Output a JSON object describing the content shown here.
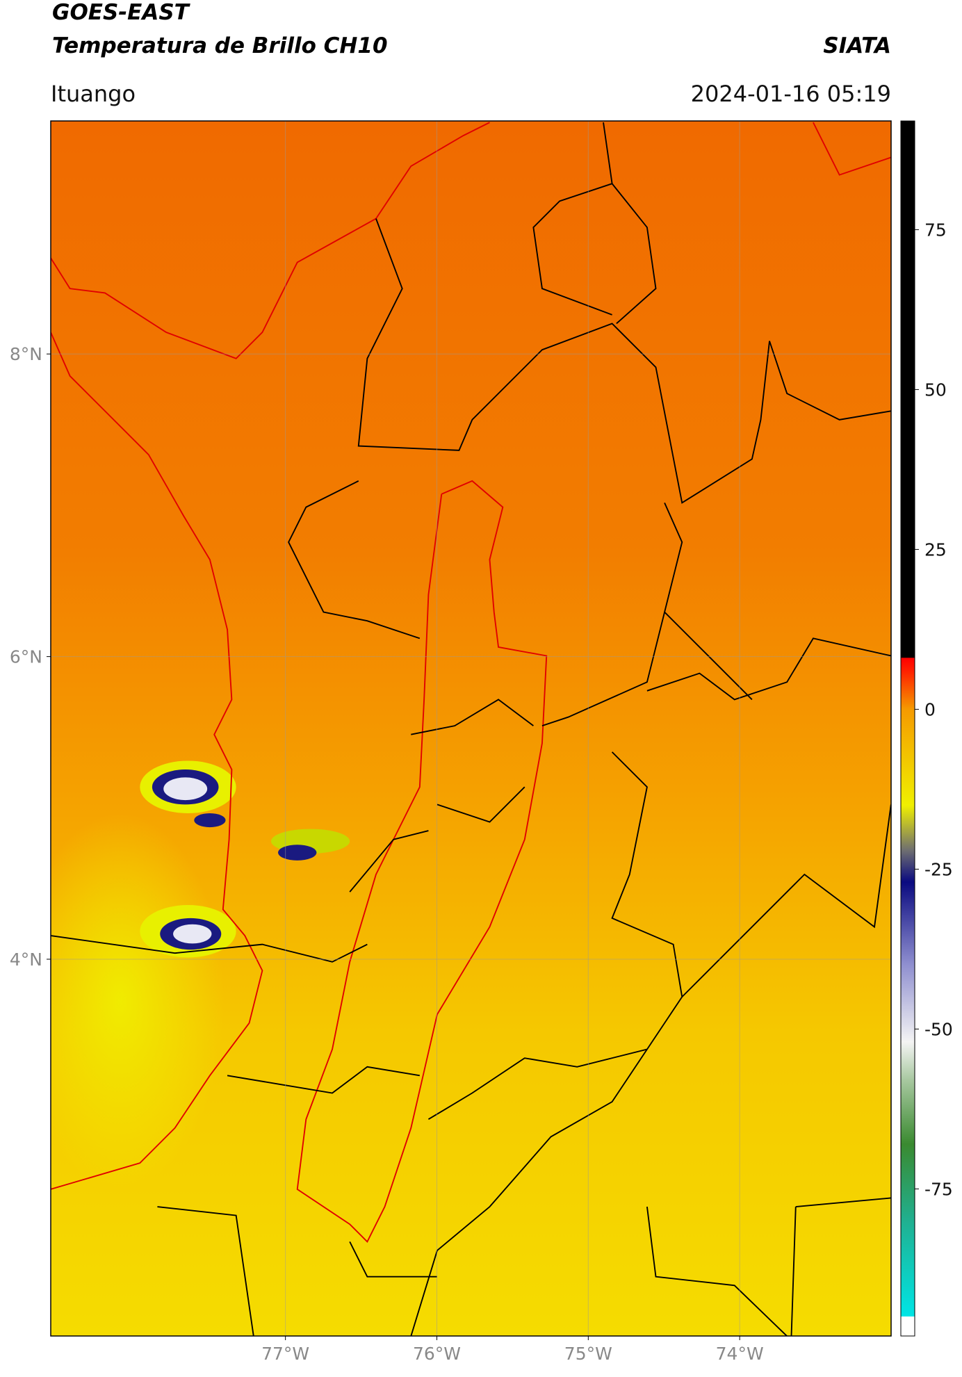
{
  "header": {
    "title": "GOES-EAST",
    "subtitle": "Temperatura de Brillo CH10",
    "source": "SIATA",
    "location": "Ituango",
    "datetime": "2024-01-16 05:19"
  },
  "map": {
    "lon_range": [
      -78.55,
      -73.0
    ],
    "lat_range": [
      1.51,
      9.54
    ],
    "lon_ticks": [
      {
        "value": -77,
        "label": "77°W"
      },
      {
        "value": -76,
        "label": "76°W"
      },
      {
        "value": -75,
        "label": "75°W"
      },
      {
        "value": -74,
        "label": "74°W"
      }
    ],
    "lat_ticks": [
      {
        "value": 8,
        "label": "8°N"
      },
      {
        "value": 6,
        "label": "6°N"
      },
      {
        "value": 4,
        "label": "4°N"
      }
    ],
    "grid": true
  },
  "colorbar": {
    "range": [
      -98,
      92
    ],
    "ticks": [
      75,
      50,
      25,
      0,
      -25,
      -50,
      -75
    ],
    "stops": [
      {
        "value": -98,
        "color": "#ffffff"
      },
      {
        "value": -95,
        "color": "#ffffff"
      },
      {
        "value": -94.9,
        "color": "#00e5e5"
      },
      {
        "value": -80,
        "color": "#20b090"
      },
      {
        "value": -68,
        "color": "#3a8a30"
      },
      {
        "value": -58,
        "color": "#a8c8a0"
      },
      {
        "value": -52,
        "color": "#f4f4f4"
      },
      {
        "value": -40,
        "color": "#9090d0"
      },
      {
        "value": -27,
        "color": "#0a0a80"
      },
      {
        "value": -22,
        "color": "#707070"
      },
      {
        "value": -15,
        "color": "#f0f000"
      },
      {
        "value": 0,
        "color": "#f59a00"
      },
      {
        "value": 6,
        "color": "#ff2000"
      },
      {
        "value": 8,
        "color": "#ff0000"
      },
      {
        "value": 8.1,
        "color": "#000000"
      },
      {
        "value": 92,
        "color": "#000000"
      }
    ]
  }
}
